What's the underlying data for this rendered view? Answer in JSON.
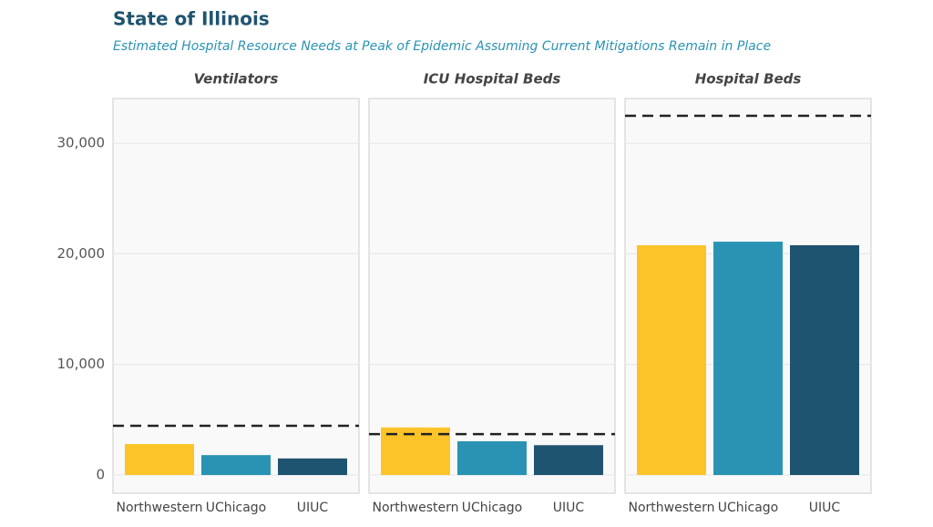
{
  "chart_data": {
    "type": "bar",
    "title": "State of Illinois",
    "subtitle": "Estimated Hospital Resource Needs at Peak of Epidemic Assuming Current Mitigations Remain in Place",
    "categories": [
      "Northwestern",
      "UChicago",
      "UIUC"
    ],
    "colors": [
      "#fcc429",
      "#2a93b3",
      "#1f5470"
    ],
    "threshold_color": "#222222",
    "ylim": [
      -1650,
      34050
    ],
    "yticks": [
      0,
      {
        "value": 10000,
        "label": "10,000"
      },
      {
        "value": 20000,
        "label": "20,000"
      },
      {
        "value": 30000,
        "label": "30,000"
      }
    ],
    "grid": true,
    "panels": [
      {
        "title": "Ventilators",
        "values": [
          2800,
          1800,
          1500
        ],
        "threshold": 4450
      },
      {
        "title": "ICU Hospital Beds",
        "values": [
          4300,
          3050,
          2700
        ],
        "threshold": 3700
      },
      {
        "title": "Hospital Beds",
        "values": [
          20780,
          21100,
          20780
        ],
        "threshold": 32480
      }
    ]
  }
}
